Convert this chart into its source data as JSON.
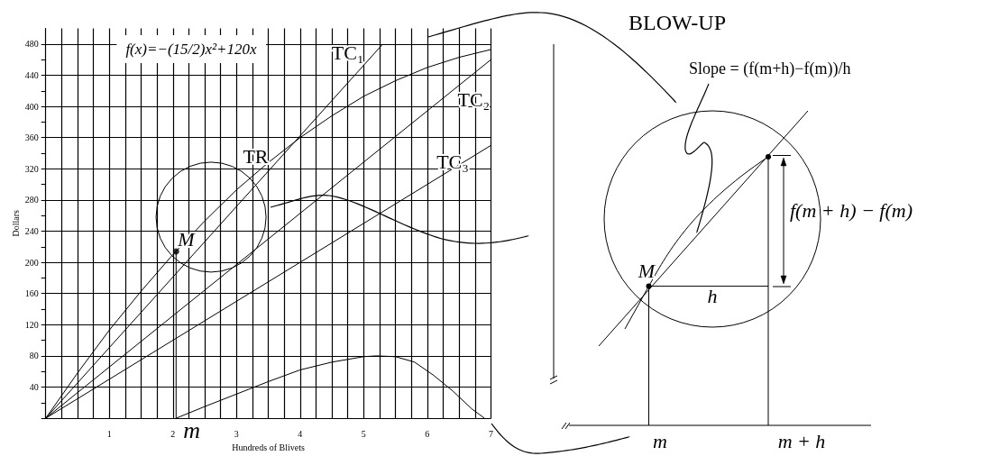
{
  "chart_data": {
    "type": "line",
    "xlabel": "Hundreds of Blivets",
    "ylabel": "Dollars",
    "xlim": [
      0,
      7
    ],
    "ylim": [
      0,
      500
    ],
    "xticks": [
      {
        "value": 0,
        "label": null
      },
      {
        "value": 0.25,
        "label": null
      },
      {
        "value": 0.5,
        "label": null
      },
      {
        "value": 0.75,
        "label": null
      },
      1,
      {
        "value": 1.25,
        "label": null
      },
      {
        "value": 1.5,
        "label": null
      },
      {
        "value": 1.75,
        "label": null
      },
      2,
      {
        "value": 2.25,
        "label": null
      },
      {
        "value": 2.5,
        "label": null
      },
      {
        "value": 2.75,
        "label": null
      },
      3,
      {
        "value": 3.25,
        "label": null
      },
      {
        "value": 3.5,
        "label": null
      },
      {
        "value": 3.75,
        "label": null
      },
      4,
      {
        "value": 4.25,
        "label": null
      },
      {
        "value": 4.5,
        "label": null
      },
      {
        "value": 4.75,
        "label": null
      },
      5,
      {
        "value": 5.25,
        "label": null
      },
      {
        "value": 5.5,
        "label": null
      },
      {
        "value": 5.75,
        "label": null
      },
      6,
      {
        "value": 6.25,
        "label": null
      },
      {
        "value": 6.5,
        "label": null
      },
      {
        "value": 6.75,
        "label": null
      },
      7
    ],
    "yticks": [
      {
        "value": 0,
        "label": null
      },
      {
        "value": 20,
        "label": null
      },
      40,
      {
        "value": 60,
        "label": null
      },
      80,
      {
        "value": 100,
        "label": null
      },
      120,
      {
        "value": 140,
        "label": null
      },
      160,
      {
        "value": 180,
        "label": null
      },
      200,
      {
        "value": 220,
        "label": null
      },
      240,
      {
        "value": 260,
        "label": null
      },
      280,
      {
        "value": 300,
        "label": null
      },
      320,
      {
        "value": 340,
        "label": null
      },
      360,
      {
        "value": 380,
        "label": null
      },
      400,
      {
        "value": 420,
        "label": null
      },
      440,
      {
        "value": 460,
        "label": null
      },
      480
    ],
    "grid": true,
    "marker": "none",
    "series": [
      {
        "name": "TR",
        "color": "#000000",
        "x": [
          0,
          0.5,
          1,
          1.5,
          2,
          2.5,
          3,
          3.5,
          4,
          4.5,
          5,
          5.5,
          6,
          6.5,
          7
        ],
        "values": [
          0,
          58,
          113,
          163,
          210,
          253,
          293,
          328,
          360,
          388,
          413,
          433,
          450,
          463,
          473
        ]
      },
      {
        "name": "TC₁",
        "color": "#000000",
        "x": [
          0,
          5.3
        ],
        "values": [
          0,
          480
        ]
      },
      {
        "name": "TC₂",
        "color": "#000000",
        "x": [
          0,
          7
        ],
        "values": [
          0,
          460
        ]
      },
      {
        "name": "TC₃",
        "color": "#000000",
        "x": [
          0,
          7
        ],
        "values": [
          0,
          350
        ]
      },
      {
        "color": "#000000",
        "x": [
          2.05,
          2.5,
          3,
          3.5,
          4,
          4.5,
          5,
          5.2,
          5.5,
          5.8,
          6.1,
          6.4,
          6.7,
          6.9
        ],
        "values": [
          0,
          15,
          31,
          47,
          62,
          72,
          79,
          80,
          79,
          72,
          55,
          35,
          12,
          0
        ]
      },
      {
        "color": "#000000",
        "x": [
          2.05,
          2.05
        ],
        "values": [
          0,
          214
        ]
      },
      {
        "type": "scatter",
        "color": "#000000",
        "x": [
          2.05
        ],
        "values": [
          214
        ]
      }
    ],
    "annotations": [
      "f(x)=−(15/2)x²+120x",
      {
        "text": "M",
        "x": 2.05,
        "y": 214
      },
      {
        "text": "m",
        "x": 2.05,
        "y": 0
      },
      "BLOW-UP",
      "Slope = (f(m+h)−f(m))/h",
      "f(m + h) − f(m)",
      "M",
      "h",
      "m",
      "m + h"
    ]
  }
}
